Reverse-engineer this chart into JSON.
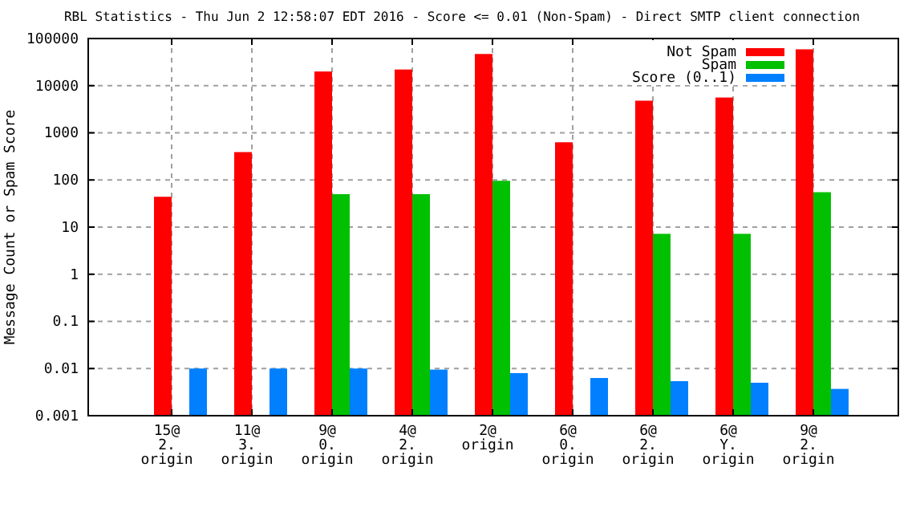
{
  "chart_data": {
    "type": "bar",
    "title": "RBL Statistics - Thu Jun  2 12:58:07 EDT 2016 - Score <= 0.01 (Non-Spam) - Direct SMTP client connection",
    "ylabel": "Message Count or Spam Score",
    "categories": [
      "15@ 2. origin",
      "11@ 3. origin",
      "9@ 0. origin",
      "4@ 2. origin",
      "2@ origin",
      "6@ 0. origin",
      "6@ 2. origin",
      "6@ Y. origin",
      "9@ 2. origin"
    ],
    "series": [
      {
        "name": "Not Spam",
        "color": "#ff0000",
        "values": [
          44,
          390,
          20000,
          22000,
          47000,
          630,
          4800,
          5600,
          59000
        ]
      },
      {
        "name": "Spam",
        "color": "#00c000",
        "values": [
          null,
          null,
          50,
          50,
          96,
          null,
          7.2,
          7.2,
          55
        ]
      },
      {
        "name": "Score (0..1)",
        "color": "#0080ff",
        "values": [
          0.01,
          0.01,
          0.01,
          0.0095,
          0.008,
          0.0063,
          0.0054,
          0.005,
          0.0037
        ]
      }
    ],
    "log": true,
    "ylim": [
      0.001,
      100000
    ],
    "yticks": [
      0.001,
      0.01,
      0.1,
      1,
      10,
      100,
      1000,
      10000,
      100000
    ],
    "grid": true,
    "legend": "top right"
  }
}
